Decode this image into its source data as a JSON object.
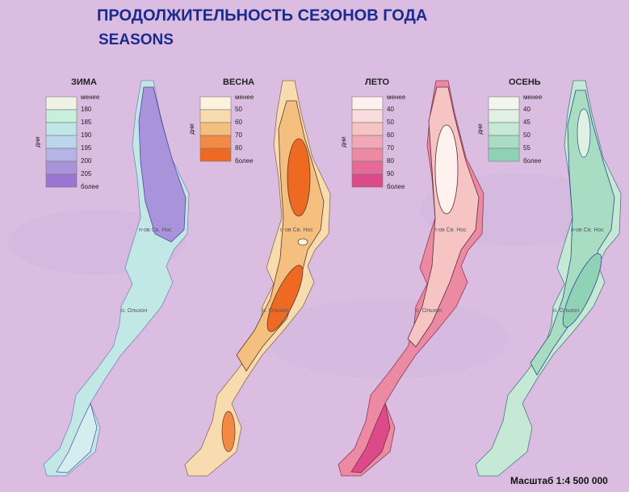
{
  "header": {
    "title": "ПРОДОЛЖИТЕЛЬНОСТЬ СЕЗОНОВ ГОДА",
    "subtitle": "SEASONS"
  },
  "panels": [
    {
      "title": "ЗИМА",
      "unit": "дни",
      "labels": [
        "менее",
        "180",
        "185",
        "190",
        "195",
        "200",
        "205",
        "более"
      ],
      "colors": [
        "#eef3e6",
        "#c9eedc",
        "#bfe6e6",
        "#bcd4ec",
        "#b6b4e6",
        "#a994dc",
        "#9a76d0"
      ]
    },
    {
      "title": "ВЕСНА",
      "unit": "дни",
      "labels": [
        "менее",
        "50",
        "60",
        "70",
        "80",
        "более"
      ],
      "colors": [
        "#fbf3dc",
        "#f8dcb0",
        "#f5bf80",
        "#f28a45",
        "#ee6a22"
      ]
    },
    {
      "title": "ЛЕТО",
      "unit": "дни",
      "labels": [
        "менее",
        "40",
        "50",
        "60",
        "70",
        "80",
        "90",
        "более"
      ],
      "colors": [
        "#fff2ee",
        "#fbdcdc",
        "#f7c4c4",
        "#f2a8b4",
        "#ec8aa4",
        "#e56a98",
        "#dc4a8a"
      ]
    },
    {
      "title": "ОСЕНЬ",
      "unit": "дни",
      "labels": [
        "менее",
        "40",
        "45",
        "50",
        "55",
        "более"
      ],
      "colors": [
        "#f3f6ea",
        "#dff1e2",
        "#c6e9d6",
        "#a8ddc4",
        "#8fd2b6"
      ]
    }
  ],
  "places": {
    "peninsula": "п-ов Св. Нос",
    "island": "о. Ольхон"
  },
  "scale": "Масштаб 1:4 500 000"
}
